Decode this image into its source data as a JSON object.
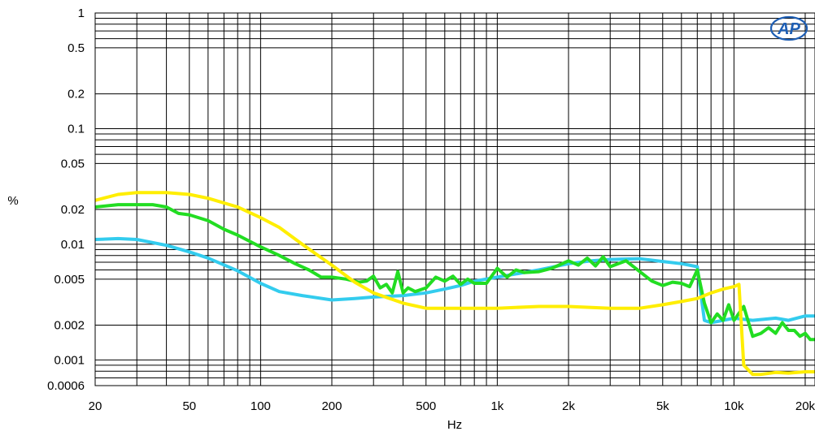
{
  "chart_data": {
    "type": "line",
    "xlabel": "Hz",
    "ylabel": "%",
    "x_scale": "log",
    "y_scale": "log",
    "xlim": [
      20,
      22000
    ],
    "ylim": [
      0.0006,
      1
    ],
    "grid": true,
    "x_ticks": [
      {
        "value": 20,
        "label": "20"
      },
      {
        "value": 50,
        "label": "50"
      },
      {
        "value": 100,
        "label": "100"
      },
      {
        "value": 200,
        "label": "200"
      },
      {
        "value": 500,
        "label": "500"
      },
      {
        "value": 1000,
        "label": "1k"
      },
      {
        "value": 2000,
        "label": "2k"
      },
      {
        "value": 5000,
        "label": "5k"
      },
      {
        "value": 10000,
        "label": "10k"
      },
      {
        "value": 20000,
        "label": "20k"
      }
    ],
    "y_ticks": [
      {
        "value": 1,
        "label": "1"
      },
      {
        "value": 0.5,
        "label": "0.5"
      },
      {
        "value": 0.2,
        "label": "0.2"
      },
      {
        "value": 0.1,
        "label": "0.1"
      },
      {
        "value": 0.05,
        "label": "0.05"
      },
      {
        "value": 0.02,
        "label": "0.02"
      },
      {
        "value": 0.01,
        "label": "0.01"
      },
      {
        "value": 0.005,
        "label": "0.005"
      },
      {
        "value": 0.002,
        "label": "0.002"
      },
      {
        "value": 0.001,
        "label": "0.001"
      },
      {
        "value": 0.0006,
        "label": "0.0006"
      }
    ],
    "series": [
      {
        "color": "#33ccee",
        "points": [
          [
            20,
            0.011
          ],
          [
            25,
            0.0112
          ],
          [
            30,
            0.011
          ],
          [
            40,
            0.0098
          ],
          [
            50,
            0.0086
          ],
          [
            60,
            0.0076
          ],
          [
            80,
            0.0059
          ],
          [
            100,
            0.0046
          ],
          [
            120,
            0.0039
          ],
          [
            150,
            0.0036
          ],
          [
            200,
            0.0033
          ],
          [
            250,
            0.0034
          ],
          [
            300,
            0.0035
          ],
          [
            400,
            0.0036
          ],
          [
            500,
            0.0038
          ],
          [
            600,
            0.0041
          ],
          [
            700,
            0.0044
          ],
          [
            800,
            0.0048
          ],
          [
            1000,
            0.0052
          ],
          [
            1500,
            0.006
          ],
          [
            2000,
            0.0068
          ],
          [
            2500,
            0.0072
          ],
          [
            3000,
            0.0074
          ],
          [
            4000,
            0.0075
          ],
          [
            5000,
            0.0071
          ],
          [
            6000,
            0.0068
          ],
          [
            7000,
            0.0064
          ],
          [
            7500,
            0.0022
          ],
          [
            8000,
            0.0021
          ],
          [
            9000,
            0.0022
          ],
          [
            10000,
            0.0023
          ],
          [
            12000,
            0.0022
          ],
          [
            15000,
            0.0023
          ],
          [
            17000,
            0.0022
          ],
          [
            20000,
            0.0024
          ],
          [
            22000,
            0.0024
          ]
        ]
      },
      {
        "color": "#22dd22",
        "points": [
          [
            20,
            0.021
          ],
          [
            25,
            0.022
          ],
          [
            30,
            0.022
          ],
          [
            35,
            0.022
          ],
          [
            40,
            0.021
          ],
          [
            45,
            0.0185
          ],
          [
            50,
            0.018
          ],
          [
            60,
            0.016
          ],
          [
            70,
            0.0135
          ],
          [
            80,
            0.012
          ],
          [
            100,
            0.0095
          ],
          [
            120,
            0.008
          ],
          [
            140,
            0.0068
          ],
          [
            160,
            0.006
          ],
          [
            180,
            0.0052
          ],
          [
            200,
            0.0052
          ],
          [
            230,
            0.005
          ],
          [
            260,
            0.0047
          ],
          [
            280,
            0.0048
          ],
          [
            300,
            0.0053
          ],
          [
            320,
            0.0042
          ],
          [
            340,
            0.0045
          ],
          [
            360,
            0.0038
          ],
          [
            380,
            0.0058
          ],
          [
            400,
            0.0038
          ],
          [
            420,
            0.0042
          ],
          [
            450,
            0.0039
          ],
          [
            500,
            0.0042
          ],
          [
            550,
            0.0052
          ],
          [
            600,
            0.0048
          ],
          [
            650,
            0.0053
          ],
          [
            700,
            0.0045
          ],
          [
            750,
            0.005
          ],
          [
            800,
            0.0046
          ],
          [
            900,
            0.0046
          ],
          [
            1000,
            0.0062
          ],
          [
            1100,
            0.0052
          ],
          [
            1200,
            0.006
          ],
          [
            1300,
            0.0057
          ],
          [
            1500,
            0.0058
          ],
          [
            1700,
            0.0062
          ],
          [
            2000,
            0.0072
          ],
          [
            2200,
            0.0066
          ],
          [
            2400,
            0.0076
          ],
          [
            2600,
            0.0065
          ],
          [
            2800,
            0.0078
          ],
          [
            3000,
            0.0064
          ],
          [
            3500,
            0.0072
          ],
          [
            4000,
            0.0058
          ],
          [
            4500,
            0.0048
          ],
          [
            5000,
            0.0044
          ],
          [
            5500,
            0.0047
          ],
          [
            6000,
            0.0046
          ],
          [
            6500,
            0.0043
          ],
          [
            7000,
            0.006
          ],
          [
            7500,
            0.0031
          ],
          [
            8000,
            0.0021
          ],
          [
            8500,
            0.0025
          ],
          [
            9000,
            0.0022
          ],
          [
            9500,
            0.003
          ],
          [
            10000,
            0.0022
          ],
          [
            11000,
            0.0029
          ],
          [
            12000,
            0.0016
          ],
          [
            13000,
            0.0017
          ],
          [
            14000,
            0.0019
          ],
          [
            15000,
            0.0017
          ],
          [
            16000,
            0.0021
          ],
          [
            17000,
            0.0018
          ],
          [
            18000,
            0.0018
          ],
          [
            19000,
            0.0016
          ],
          [
            20000,
            0.0017
          ],
          [
            21000,
            0.0015
          ],
          [
            22000,
            0.0015
          ]
        ]
      },
      {
        "color": "#ffee00",
        "points": [
          [
            20,
            0.024
          ],
          [
            25,
            0.027
          ],
          [
            30,
            0.028
          ],
          [
            40,
            0.028
          ],
          [
            50,
            0.027
          ],
          [
            60,
            0.025
          ],
          [
            80,
            0.021
          ],
          [
            100,
            0.017
          ],
          [
            120,
            0.014
          ],
          [
            150,
            0.01
          ],
          [
            200,
            0.0066
          ],
          [
            250,
            0.0047
          ],
          [
            300,
            0.0038
          ],
          [
            400,
            0.0031
          ],
          [
            500,
            0.0028
          ],
          [
            700,
            0.0028
          ],
          [
            1000,
            0.0028
          ],
          [
            1500,
            0.0029
          ],
          [
            2000,
            0.0029
          ],
          [
            3000,
            0.0028
          ],
          [
            4000,
            0.0028
          ],
          [
            5000,
            0.003
          ],
          [
            6000,
            0.0032
          ],
          [
            7000,
            0.0034
          ],
          [
            8000,
            0.0038
          ],
          [
            9000,
            0.0041
          ],
          [
            10000,
            0.0043
          ],
          [
            10500,
            0.0045
          ],
          [
            11000,
            0.0009
          ],
          [
            12000,
            0.00075
          ],
          [
            13000,
            0.00075
          ],
          [
            15000,
            0.00078
          ],
          [
            17000,
            0.00077
          ],
          [
            20000,
            0.00079
          ],
          [
            22000,
            0.00079
          ]
        ]
      }
    ]
  }
}
